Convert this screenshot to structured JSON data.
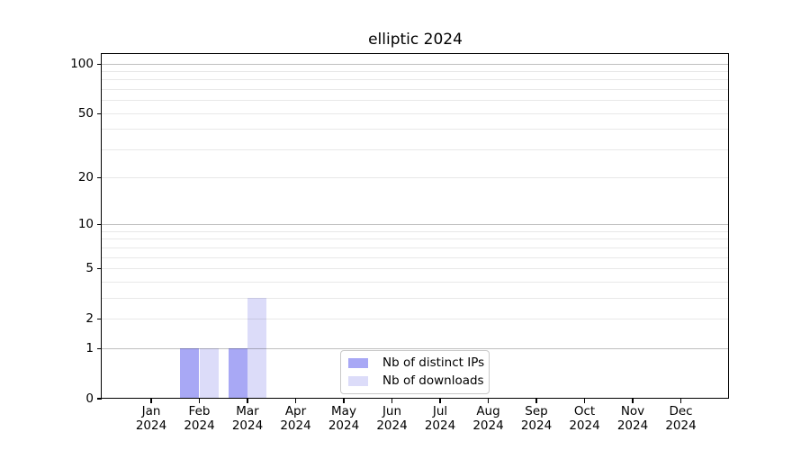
{
  "chart_data": {
    "type": "bar",
    "title": "elliptic 2024",
    "x_labels": [
      [
        "Jan",
        "2024"
      ],
      [
        "Feb",
        "2024"
      ],
      [
        "Mar",
        "2024"
      ],
      [
        "Apr",
        "2024"
      ],
      [
        "May",
        "2024"
      ],
      [
        "Jun",
        "2024"
      ],
      [
        "Jul",
        "2024"
      ],
      [
        "Aug",
        "2024"
      ],
      [
        "Sep",
        "2024"
      ],
      [
        "Oct",
        "2024"
      ],
      [
        "Nov",
        "2024"
      ],
      [
        "Dec",
        "2024"
      ]
    ],
    "series": [
      {
        "name": "Nb of distinct IPs",
        "color": "#a8a8f5",
        "values": [
          0,
          1,
          1,
          0,
          0,
          0,
          0,
          0,
          0,
          0,
          0,
          0
        ]
      },
      {
        "name": "Nb of downloads",
        "color": "#dcdcf9",
        "values": [
          0,
          1,
          3,
          0,
          0,
          0,
          0,
          0,
          0,
          0,
          0,
          0
        ]
      }
    ],
    "yscale": "log1p",
    "ylim": [
      0,
      115
    ],
    "yticks_labeled": [
      "0",
      "1",
      "2",
      "5",
      "10",
      "20",
      "50",
      "100"
    ],
    "ytick_values": [
      0,
      1,
      2,
      5,
      10,
      20,
      50,
      100
    ],
    "ygrid_major": [
      1,
      10,
      100
    ],
    "ygrid_minor": [
      2,
      3,
      4,
      5,
      6,
      7,
      8,
      9,
      20,
      30,
      40,
      50,
      60,
      70,
      80,
      90
    ],
    "grid": "horizontal only",
    "legend_position": "lower center",
    "legend_entries": [
      "Nb of distinct IPs",
      "Nb of downloads"
    ]
  },
  "colors": {
    "background": "#ffffff",
    "axis": "#000000",
    "legend_border": "#c9c9c9"
  }
}
